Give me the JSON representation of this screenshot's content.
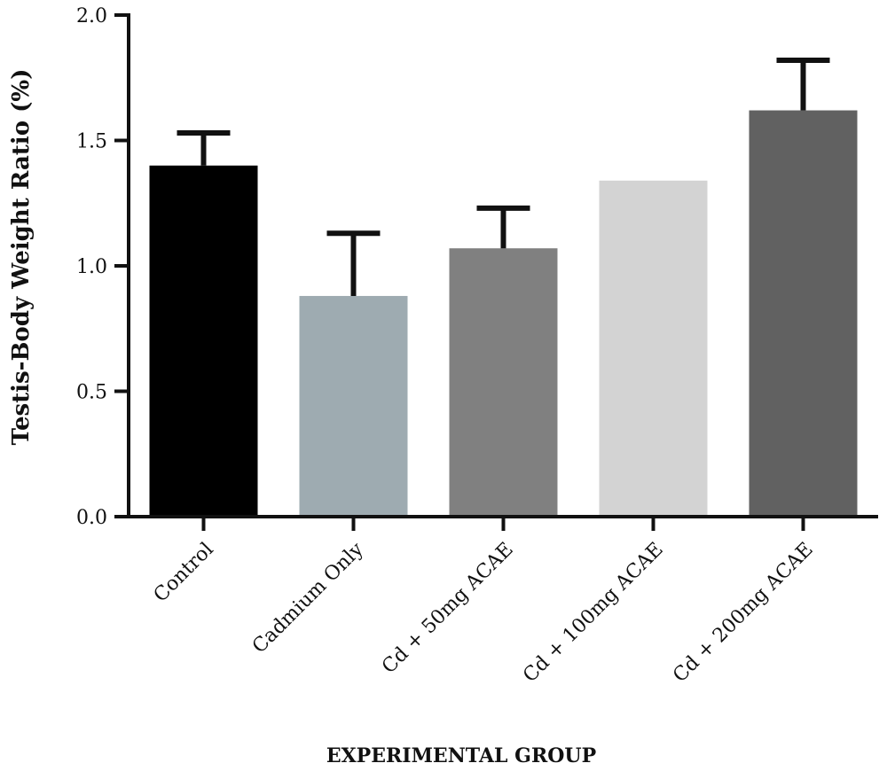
{
  "chart_data": {
    "type": "bar",
    "categories": [
      "Control",
      "Cadmium Only",
      "Cd + 50mg ACAE",
      "Cd + 100mg ACAE",
      "Cd + 200mg ACAE"
    ],
    "values": [
      1.4,
      0.88,
      1.07,
      1.34,
      1.62
    ],
    "error_upper": [
      0.13,
      0.25,
      0.16,
      0,
      0.2
    ],
    "colors": [
      "#000000",
      "#9eabb1",
      "#808080",
      "#d3d3d3",
      "#616161"
    ],
    "xlabel": "EXPERIMENTAL GROUP",
    "ylabel": "Testis-Body Weight Ratio (%)",
    "ylim": [
      0,
      2.0
    ],
    "yticks": [
      "0.0",
      "0.5",
      "1.0",
      "1.5",
      "2.0"
    ],
    "grid": false,
    "legend": "none"
  }
}
